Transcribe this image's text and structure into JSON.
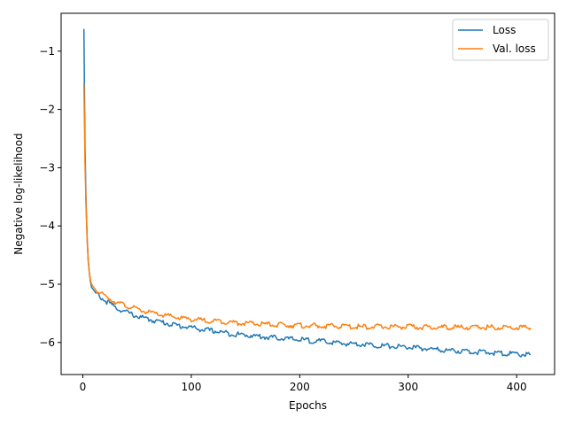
{
  "chart_data": {
    "type": "line",
    "title": "",
    "xlabel": "Epochs",
    "ylabel": "Negative log-likelihood",
    "xlim": [
      -20,
      435
    ],
    "ylim": [
      -6.55,
      -0.35
    ],
    "xticks": [
      0,
      100,
      200,
      300,
      400
    ],
    "xtick_labels": [
      "0",
      "100",
      "200",
      "300",
      "400"
    ],
    "yticks": [
      -6,
      -5,
      -4,
      -3,
      -2,
      -1
    ],
    "ytick_labels": [
      "−6",
      "−5",
      "−4",
      "−3",
      "−2",
      "−1"
    ],
    "grid": false,
    "legend_position": "top-right",
    "series": [
      {
        "name": "Loss",
        "color": "#1f77b4",
        "x": [
          1,
          2,
          3,
          4,
          5,
          6,
          7,
          8,
          10,
          12,
          15,
          20,
          25,
          30,
          40,
          50,
          60,
          70,
          80,
          90,
          100,
          110,
          120,
          130,
          140,
          150,
          160,
          170,
          180,
          190,
          200,
          210,
          220,
          230,
          240,
          250,
          260,
          270,
          280,
          290,
          300,
          310,
          320,
          330,
          340,
          350,
          360,
          370,
          380,
          390,
          400,
          413
        ],
        "y": [
          -0.62,
          -2.6,
          -3.6,
          -4.2,
          -4.6,
          -4.8,
          -4.95,
          -5.05,
          -5.1,
          -5.15,
          -5.2,
          -5.28,
          -5.33,
          -5.4,
          -5.48,
          -5.55,
          -5.6,
          -5.64,
          -5.68,
          -5.72,
          -5.74,
          -5.78,
          -5.8,
          -5.83,
          -5.86,
          -5.87,
          -5.89,
          -5.91,
          -5.92,
          -5.94,
          -5.95,
          -5.97,
          -5.98,
          -6.0,
          -6.02,
          -6.02,
          -6.03,
          -6.05,
          -6.06,
          -6.07,
          -6.08,
          -6.1,
          -6.11,
          -6.13,
          -6.14,
          -6.15,
          -6.16,
          -6.17,
          -6.18,
          -6.19,
          -6.2,
          -6.21
        ]
      },
      {
        "name": "Val. loss",
        "color": "#ff7f0e",
        "x": [
          1,
          2,
          3,
          4,
          5,
          6,
          7,
          8,
          10,
          12,
          15,
          20,
          25,
          30,
          40,
          50,
          60,
          70,
          80,
          90,
          100,
          110,
          120,
          130,
          140,
          150,
          160,
          170,
          180,
          190,
          200,
          210,
          220,
          230,
          240,
          250,
          260,
          270,
          280,
          290,
          300,
          310,
          320,
          330,
          340,
          350,
          360,
          370,
          380,
          390,
          400,
          413
        ],
        "y": [
          -1.55,
          -2.9,
          -3.7,
          -4.25,
          -4.6,
          -4.8,
          -4.92,
          -5.0,
          -5.05,
          -5.1,
          -5.14,
          -5.2,
          -5.25,
          -5.3,
          -5.37,
          -5.43,
          -5.48,
          -5.52,
          -5.55,
          -5.58,
          -5.6,
          -5.62,
          -5.63,
          -5.64,
          -5.66,
          -5.67,
          -5.68,
          -5.69,
          -5.7,
          -5.7,
          -5.71,
          -5.71,
          -5.72,
          -5.72,
          -5.72,
          -5.73,
          -5.73,
          -5.73,
          -5.73,
          -5.73,
          -5.73,
          -5.74,
          -5.74,
          -5.74,
          -5.74,
          -5.74,
          -5.74,
          -5.74,
          -5.74,
          -5.74,
          -5.74,
          -5.75
        ]
      }
    ]
  }
}
